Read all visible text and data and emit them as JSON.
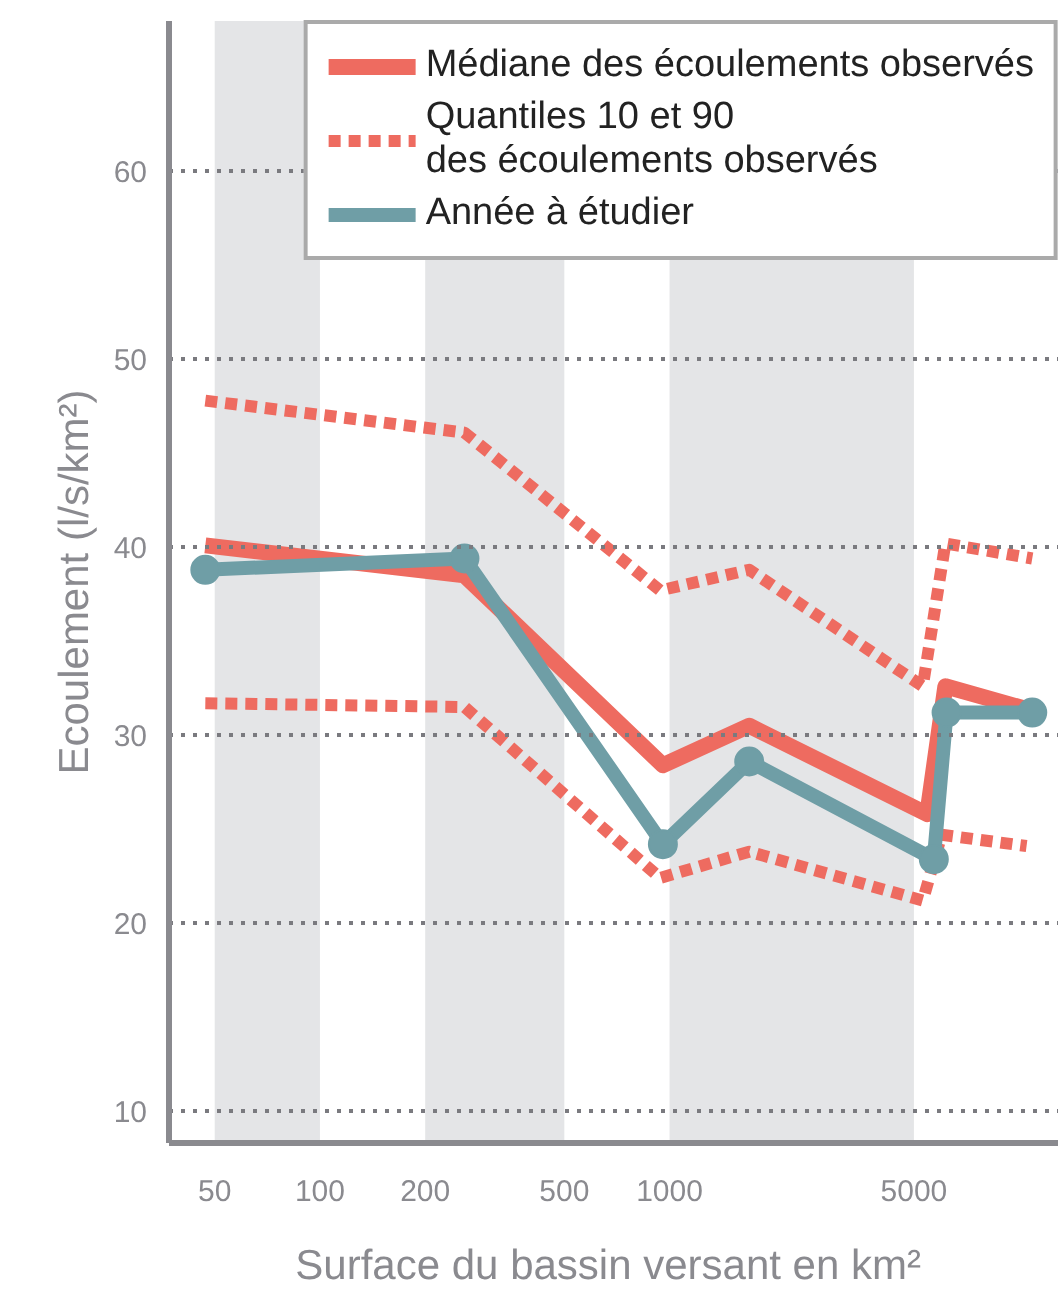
{
  "chart_data": {
    "type": "line",
    "xlabel": "Surface  du bassin versant en km²",
    "ylabel": "Ecoulement (l/s/km²)",
    "log": "x",
    "xlim": [
      37,
      13000
    ],
    "xticks": [
      50,
      100,
      200,
      500,
      1000,
      5000
    ],
    "ylim": [
      8.3,
      68
    ],
    "yticks": [
      10,
      20,
      30,
      40,
      50,
      60
    ],
    "grid": "y",
    "legend": "top right",
    "bands": [
      {
        "axis": "x",
        "from": 50,
        "to": 100,
        "color": "#e4e5e7"
      },
      {
        "axis": "x",
        "from": 200,
        "to": 500,
        "color": "#e4e5e7"
      },
      {
        "axis": "x",
        "from": 1000,
        "to": 5000,
        "color": "#e4e5e7"
      }
    ],
    "series": [
      {
        "name": "Médiane des écoulements observés",
        "color": "#ee6b60",
        "line_style": "solid",
        "marker": "none",
        "x": [
          47,
          259,
          957,
          1690,
          5460,
          6150,
          10900
        ],
        "values": [
          40.1,
          38.5,
          28.4,
          30.5,
          25.8,
          32.6,
          31.3
        ]
      },
      {
        "name": "Quantiles 10 et 90\ndes écoulements observés",
        "color": "#ee6b60",
        "line_style": "dashed",
        "marker": "none",
        "x": [
          47,
          259,
          940,
          1690,
          5300,
          6150,
          10900
        ],
        "values": [
          47.8,
          46.1,
          37.7,
          38.8,
          32.6,
          40.2,
          39.4
        ]
      },
      {
        "color": "#ee6b60",
        "line_style": "dashed",
        "marker": "none",
        "x": [
          47,
          259,
          940,
          1690,
          5300,
          6000,
          10500
        ],
        "values": [
          31.7,
          31.5,
          22.4,
          23.8,
          21.2,
          24.7,
          24.1
        ]
      },
      {
        "name": "Année à étudier",
        "color": "#6f9ea6",
        "line_style": "solid",
        "marker": "circle",
        "x": [
          47,
          259,
          957,
          1690,
          5700,
          6200,
          10900
        ],
        "values": [
          38.8,
          39.4,
          24.2,
          28.6,
          23.4,
          31.2,
          31.2
        ]
      }
    ]
  }
}
